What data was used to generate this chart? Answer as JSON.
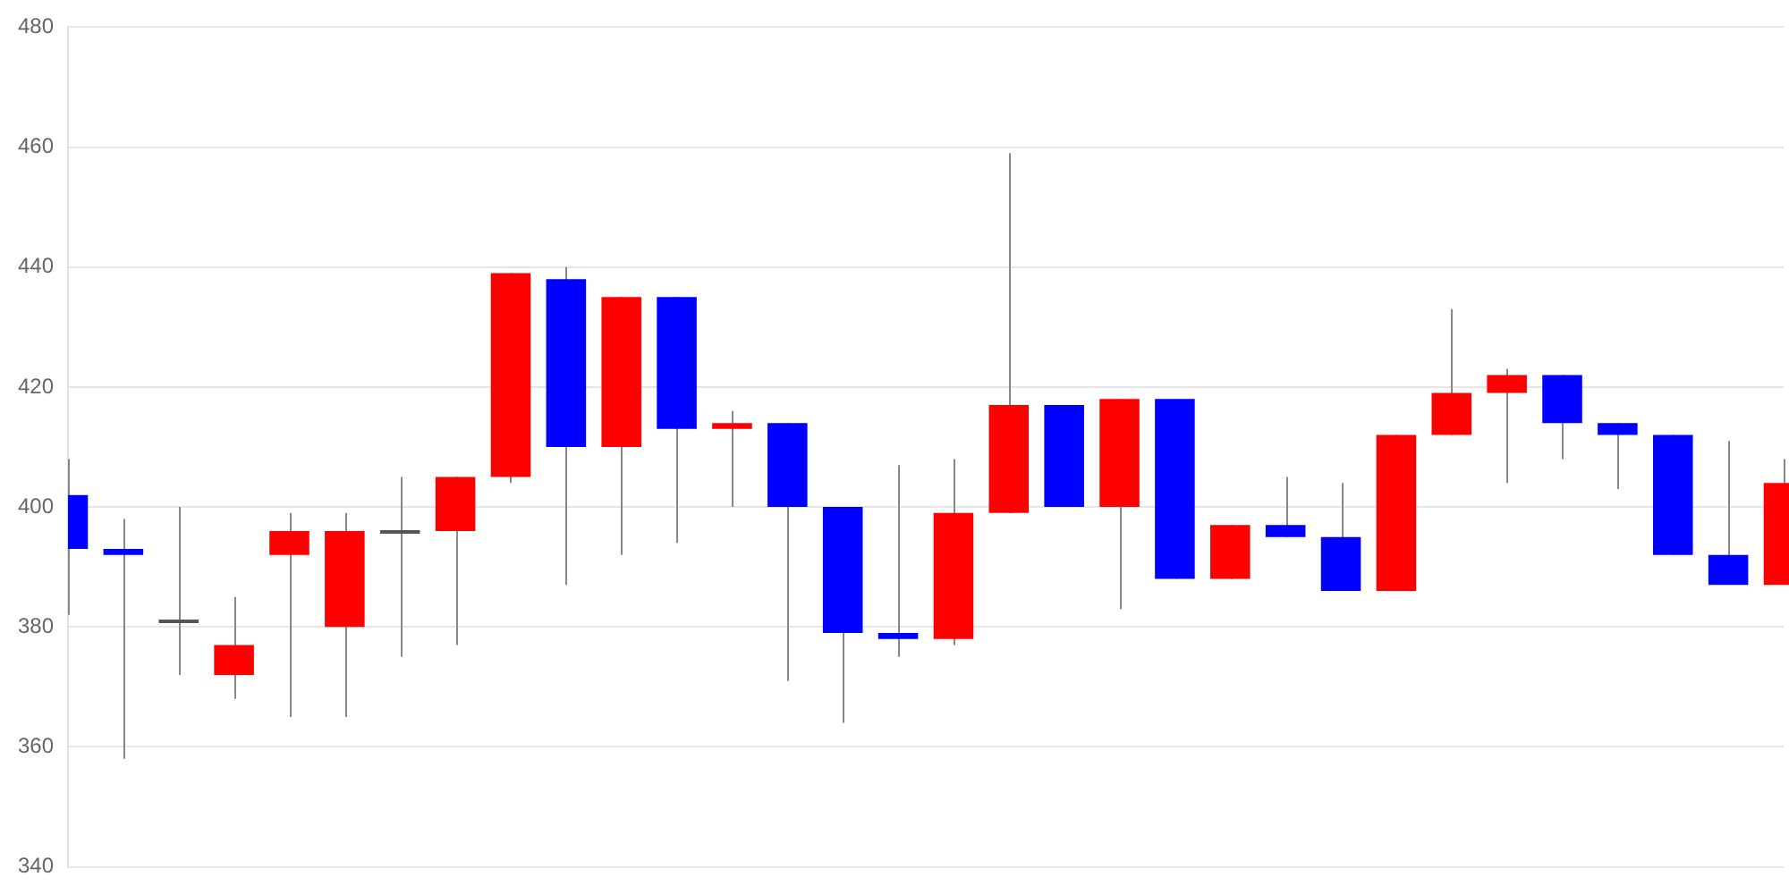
{
  "chart_data": {
    "type": "candlestick",
    "categories": [
      null,
      null,
      null,
      null,
      null,
      null,
      null,
      null,
      null,
      null,
      null,
      null,
      null,
      null,
      null,
      null,
      null,
      null,
      null,
      null,
      null,
      null,
      null,
      null,
      null,
      null,
      null,
      null,
      null,
      null,
      null,
      null
    ],
    "ohlc": [
      [
        402,
        408,
        382,
        393
      ],
      [
        393,
        398,
        358,
        392
      ],
      [
        381,
        400,
        372,
        381
      ],
      [
        372,
        385,
        368,
        377
      ],
      [
        392,
        399,
        365,
        396
      ],
      [
        380,
        399,
        365,
        396
      ],
      [
        396,
        405,
        375,
        396
      ],
      [
        396,
        405,
        377,
        405
      ],
      [
        405,
        439,
        404,
        439
      ],
      [
        438,
        440,
        387,
        410
      ],
      [
        410,
        435,
        392,
        435
      ],
      [
        435,
        435,
        394,
        413
      ],
      [
        413,
        416,
        400,
        414
      ],
      [
        414,
        414,
        371,
        400
      ],
      [
        400,
        400,
        364,
        379
      ],
      [
        379,
        407,
        375,
        378
      ],
      [
        378,
        408,
        377,
        399
      ],
      [
        399,
        459,
        399,
        417
      ],
      [
        417,
        417,
        400,
        400
      ],
      [
        400,
        418,
        383,
        418
      ],
      [
        418,
        418,
        388,
        388
      ],
      [
        388,
        397,
        388,
        397
      ],
      [
        397,
        405,
        395,
        395
      ],
      [
        395,
        404,
        386,
        386
      ],
      [
        386,
        412,
        386,
        412
      ],
      [
        412,
        433,
        412,
        419
      ],
      [
        419,
        423,
        404,
        422
      ],
      [
        422,
        422,
        408,
        414
      ],
      [
        414,
        414,
        403,
        412
      ],
      [
        412,
        412,
        392,
        392
      ],
      [
        392,
        411,
        387,
        387
      ],
      [
        387,
        408,
        387,
        404
      ]
    ],
    "colors": [
      "#0000ff",
      "#0000ff",
      "#555555",
      "#ff0000",
      "#ff0000",
      "#ff0000",
      "#555555",
      "#ff0000",
      "#ff0000",
      "#0000ff",
      "#ff0000",
      "#0000ff",
      "#ff0000",
      "#0000ff",
      "#0000ff",
      "#0000ff",
      "#ff0000",
      "#ff0000",
      "#0000ff",
      "#ff0000",
      "#0000ff",
      "#ff0000",
      "#0000ff",
      "#0000ff",
      "#ff0000",
      "#ff0000",
      "#ff0000",
      "#0000ff",
      "#0000ff",
      "#0000ff",
      "#0000ff",
      "#ff0000"
    ],
    "ylim": [
      340,
      480
    ],
    "yticks": [
      340,
      360,
      380,
      400,
      420,
      440,
      460,
      480
    ],
    "grid": "y",
    "legend": false
  }
}
